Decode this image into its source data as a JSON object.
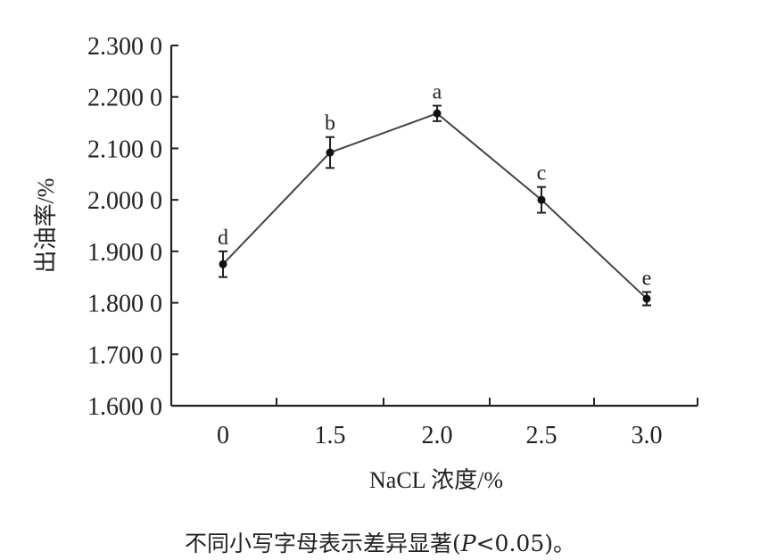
{
  "chart_data": {
    "type": "line",
    "xlabel": "NaCL 浓度/%",
    "ylabel": "出油率/%",
    "categories": [
      "0",
      "1.5",
      "2.0",
      "2.5",
      "3.0"
    ],
    "ylim": [
      1.6,
      2.3
    ],
    "yticks": [
      1.6,
      1.7,
      1.8,
      1.9,
      2.0,
      2.1,
      2.2,
      2.3
    ],
    "ytick_labels": [
      "1.600 0",
      "1.700 0",
      "1.800 0",
      "1.900 0",
      "2.000 0",
      "2.100 0",
      "2.200 0",
      "2.300 0"
    ],
    "series": [
      {
        "values": [
          1.875,
          2.092,
          2.168,
          2.0,
          1.808
        ],
        "errors": [
          0.025,
          0.03,
          0.015,
          0.025,
          0.013
        ],
        "labels": [
          "d",
          "b",
          "a",
          "c",
          "e"
        ]
      }
    ],
    "line_color": "#444444",
    "marker_color": "#111111",
    "grid": false
  },
  "caption": {
    "prefix": "不同小写字母表示差异显著(",
    "p_symbol": "P",
    "suffix": "<0.05)。"
  }
}
